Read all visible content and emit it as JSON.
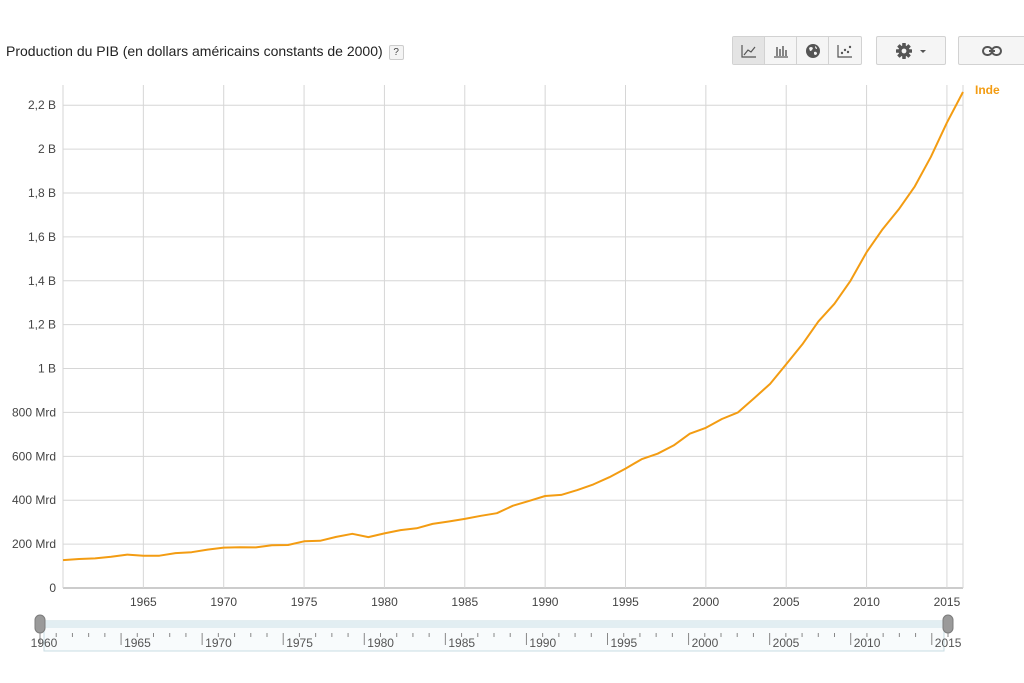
{
  "header": {
    "title": "Production du PIB (en dollars américains constants de 2000)",
    "help_label": "?"
  },
  "toolbar": {
    "chart_types": [
      {
        "icon": "line-chart-icon",
        "active": true
      },
      {
        "icon": "bar-chart-icon",
        "active": false
      },
      {
        "icon": "globe-icon",
        "active": false
      },
      {
        "icon": "scatter-chart-icon",
        "active": false
      }
    ],
    "settings_icon": "gear-icon",
    "link_icon": "link-icon"
  },
  "chart_data": {
    "type": "line",
    "title": "",
    "xlabel": "",
    "ylabel": "",
    "xlim": [
      1960,
      2016
    ],
    "ylim": [
      0,
      2300
    ],
    "y_ticks": [
      {
        "value": 0,
        "label": "0"
      },
      {
        "value": 200,
        "label": "200 Mrd"
      },
      {
        "value": 400,
        "label": "400 Mrd"
      },
      {
        "value": 600,
        "label": "600 Mrd"
      },
      {
        "value": 800,
        "label": "800 Mrd"
      },
      {
        "value": 1000,
        "label": "1 B"
      },
      {
        "value": 1200,
        "label": "1,2 B"
      },
      {
        "value": 1400,
        "label": "1,4 B"
      },
      {
        "value": 1600,
        "label": "1,6 B"
      },
      {
        "value": 1800,
        "label": "1,8 B"
      },
      {
        "value": 2000,
        "label": "2 B"
      },
      {
        "value": 2200,
        "label": "2,2 B"
      }
    ],
    "x_ticks": [
      1965,
      1970,
      1975,
      1980,
      1985,
      1990,
      1995,
      2000,
      2005,
      2010,
      2015
    ],
    "grid": true,
    "legend": "end-of-line label",
    "series": [
      {
        "name": "Inde",
        "color": "#f39c12",
        "x": [
          1960,
          1961,
          1962,
          1963,
          1964,
          1965,
          1966,
          1967,
          1968,
          1969,
          1970,
          1971,
          1972,
          1973,
          1974,
          1975,
          1976,
          1977,
          1978,
          1979,
          1980,
          1981,
          1982,
          1983,
          1984,
          1985,
          1986,
          1987,
          1988,
          1989,
          1990,
          1991,
          1992,
          1993,
          1994,
          1995,
          1996,
          1997,
          1998,
          1999,
          2000,
          2001,
          2002,
          2003,
          2004,
          2005,
          2006,
          2007,
          2008,
          2009,
          2010,
          2011,
          2012,
          2013,
          2014,
          2015,
          2016
        ],
        "y": [
          127,
          132,
          135,
          142,
          152,
          147,
          147,
          159,
          163,
          175,
          184,
          186,
          185,
          195,
          196,
          213,
          215,
          233,
          247,
          232,
          249,
          264,
          272,
          292,
          303,
          315,
          329,
          341,
          375,
          397,
          419,
          424,
          446,
          472,
          505,
          544,
          587,
          612,
          650,
          703,
          730,
          770,
          800,
          865,
          930,
          1020,
          1110,
          1215,
          1295,
          1400,
          1530,
          1635,
          1725,
          1830,
          1965,
          2120,
          2260
        ]
      }
    ]
  },
  "range_slider": {
    "start_year": 1960,
    "end_year": 2016,
    "labels": [
      "1960",
      "1965",
      "1970",
      "1975",
      "1980",
      "1985",
      "1990",
      "1995",
      "2000",
      "2005",
      "2010",
      "2015"
    ]
  }
}
